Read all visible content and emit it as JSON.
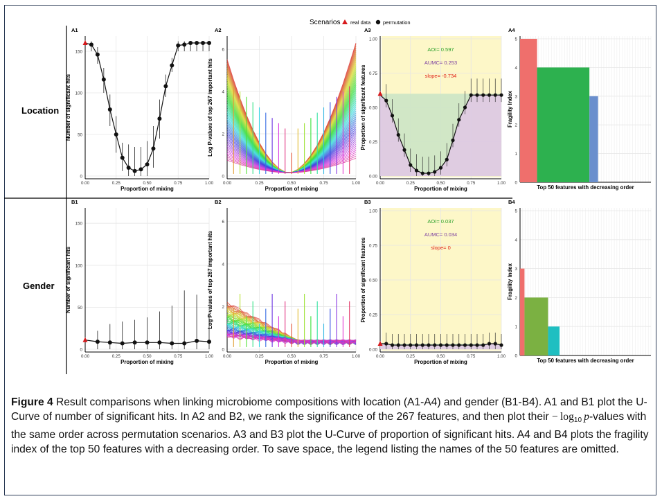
{
  "legend": {
    "title": "Scenarios",
    "items": [
      "real data",
      "permutation"
    ]
  },
  "row_labels": [
    "Location",
    "Gender"
  ],
  "caption": {
    "label": "Figure 4",
    "text_part1": "Result comparisons when linking microbiome compositions with location (A1-A4) and gender (B1-B4). A1 and B1 plot the U-Curve of number of significant hits. In A2 and B2, we rank the significance of the 267 features, and then plot their ",
    "math_minus": "−",
    "math_log": "log",
    "math_sub": "10",
    "math_p": "p",
    "text_part2": "-values with the same order across permutation scenarios. A3 and B3 plot the U-Curve of proportion of significant hits. A4 and B4 plots the fragility index of the top 50 features with a decreasing order. To save space, the legend listing the names of the 50 features are omitted."
  },
  "colors": {
    "real": "#d7191c",
    "line": "#111111",
    "yellow": "#fdf7c8",
    "green": "#cfe6c6",
    "purple": "#ddc9e3",
    "aoi": "#2ca02c",
    "aumc": "#7b3fa0",
    "slope": "#e0211a"
  },
  "chart_data": [
    {
      "id": "A1",
      "type": "line",
      "xlabel": "Proportion of mixing",
      "ylabel": "Number of significant hits",
      "xlim": [
        0,
        1
      ],
      "ylim": [
        0,
        165
      ],
      "xticks": [
        "0.00",
        "0.25",
        "0.50",
        "0.75",
        "1.00"
      ],
      "yticks": [
        "0",
        "50",
        "100",
        "150"
      ],
      "series": [
        {
          "name": "permutation",
          "x": [
            0.05,
            0.1,
            0.15,
            0.2,
            0.25,
            0.3,
            0.35,
            0.4,
            0.45,
            0.5,
            0.55,
            0.6,
            0.65,
            0.7,
            0.75,
            0.8,
            0.85,
            0.9,
            0.95,
            1.0
          ],
          "values": [
            158,
            146,
            116,
            80,
            50,
            22,
            10,
            6,
            8,
            14,
            33,
            69,
            108,
            133,
            157,
            158,
            160,
            160,
            160,
            160
          ],
          "err_low": [
            150,
            135,
            100,
            60,
            28,
            6,
            0,
            0,
            0,
            0,
            10,
            45,
            95,
            125,
            150,
            150,
            150,
            150,
            150,
            150
          ],
          "err_high": [
            162,
            155,
            130,
            98,
            72,
            40,
            38,
            35,
            35,
            42,
            60,
            92,
            122,
            142,
            162,
            162,
            162,
            162,
            162,
            162
          ]
        }
      ],
      "real": {
        "x": 0.0,
        "y": 160
      }
    },
    {
      "id": "A2",
      "type": "line",
      "xlabel": "Proportion of mixing",
      "ylabel": "Log P-values of top 267 important hits",
      "xlim": [
        0,
        1
      ],
      "ylim": [
        0,
        6.5
      ],
      "xticks": [
        "0.00",
        "0.25",
        "0.50",
        "0.75",
        "1.00"
      ],
      "yticks": [
        "0",
        "2",
        "4",
        "6"
      ]
    },
    {
      "id": "A3",
      "type": "area",
      "xlabel": "Proportion of mixing",
      "ylabel": "Proportion of significant features",
      "xlim": [
        0,
        1
      ],
      "ylim": [
        0,
        1
      ],
      "xticks": [
        "0.00",
        "0.25",
        "0.50",
        "0.75",
        "1.00"
      ],
      "yticks": [
        "0.00",
        "0.25",
        "0.50",
        "0.75",
        "1.00"
      ],
      "annotations": [
        "AOI= 0.597",
        "AUMC= 0.253",
        "slope= -0.734"
      ],
      "series": [
        {
          "name": "permutation",
          "x": [
            0.0,
            0.05,
            0.1,
            0.15,
            0.2,
            0.25,
            0.3,
            0.35,
            0.4,
            0.45,
            0.5,
            0.55,
            0.6,
            0.65,
            0.7,
            0.75,
            0.8,
            0.85,
            0.9,
            0.95,
            1.0
          ],
          "values": [
            0.59,
            0.55,
            0.44,
            0.3,
            0.19,
            0.08,
            0.04,
            0.02,
            0.02,
            0.03,
            0.06,
            0.12,
            0.26,
            0.41,
            0.5,
            0.59,
            0.59,
            0.59,
            0.59,
            0.59,
            0.59
          ]
        }
      ],
      "real": {
        "x": 0.0,
        "y": 0.6
      }
    },
    {
      "id": "A4",
      "type": "bar",
      "xlabel": "Top 50 features with decreasing order",
      "ylabel": "Fragility Index",
      "ylim": [
        0,
        5
      ],
      "yticks": [
        "0",
        "1",
        "2",
        "3",
        "4",
        "5"
      ],
      "values": [
        5,
        4,
        3
      ],
      "bar_colors": [
        "#ef6f6c",
        "#2db14f",
        "#6a8fcd"
      ]
    },
    {
      "id": "B1",
      "type": "line",
      "xlabel": "Proportion of mixing",
      "ylabel": "Number of significant hits",
      "xlim": [
        0,
        1
      ],
      "ylim": [
        0,
        165
      ],
      "xticks": [
        "0.00",
        "0.25",
        "0.50",
        "0.75",
        "1.00"
      ],
      "yticks": [
        "0",
        "50",
        "100",
        "150"
      ],
      "series": [
        {
          "name": "permutation",
          "x": [
            0.1,
            0.2,
            0.3,
            0.4,
            0.5,
            0.6,
            0.7,
            0.8,
            0.9,
            1.0
          ],
          "values": [
            9,
            8,
            7,
            8,
            8,
            8,
            7,
            7,
            10,
            9
          ],
          "err_low": [
            0,
            0,
            0,
            0,
            0,
            0,
            0,
            0,
            0,
            0
          ],
          "err_high": [
            22,
            30,
            33,
            35,
            38,
            45,
            52,
            70,
            65,
            43
          ]
        }
      ],
      "real": {
        "x": 0.0,
        "y": 11
      }
    },
    {
      "id": "B2",
      "type": "line",
      "xlabel": "Proportion of mixing",
      "ylabel": "Log P-values of top 267 important hits",
      "xlim": [
        0,
        1
      ],
      "ylim": [
        0,
        6.5
      ],
      "xticks": [
        "0.00",
        "0.25",
        "0.50",
        "0.75",
        "1.00"
      ],
      "yticks": [
        "0",
        "2",
        "4",
        "6"
      ]
    },
    {
      "id": "B3",
      "type": "area",
      "xlabel": "Proportion of mixing",
      "ylabel": "Proportion of significant features",
      "xlim": [
        0,
        1
      ],
      "ylim": [
        0,
        1
      ],
      "xticks": [
        "0.00",
        "0.25",
        "0.50",
        "0.75",
        "1.00"
      ],
      "yticks": [
        "0.00",
        "0.25",
        "0.50",
        "0.75",
        "1.00"
      ],
      "annotations": [
        "AOI= 0.037",
        "AUMC= 0.034",
        "slope= 0"
      ],
      "series": [
        {
          "name": "permutation",
          "x": [
            0.0,
            0.05,
            0.1,
            0.15,
            0.2,
            0.25,
            0.3,
            0.35,
            0.4,
            0.45,
            0.5,
            0.55,
            0.6,
            0.65,
            0.7,
            0.75,
            0.8,
            0.85,
            0.9,
            0.95,
            1.0
          ],
          "values": [
            0.04,
            0.04,
            0.03,
            0.03,
            0.03,
            0.03,
            0.03,
            0.03,
            0.03,
            0.03,
            0.03,
            0.03,
            0.03,
            0.03,
            0.03,
            0.03,
            0.03,
            0.03,
            0.04,
            0.04,
            0.03
          ]
        }
      ],
      "real": {
        "x": 0.0,
        "y": 0.04
      }
    },
    {
      "id": "B4",
      "type": "bar",
      "xlabel": "Top 50 features with decreasing order",
      "ylabel": "Fragility Index",
      "ylim": [
        0,
        5
      ],
      "yticks": [
        "0",
        "1",
        "2",
        "3",
        "4",
        "5"
      ],
      "values": [
        3,
        2,
        1
      ],
      "bar_colors": [
        "#ef6f6c",
        "#7bb142",
        "#1fbfc1"
      ]
    }
  ]
}
